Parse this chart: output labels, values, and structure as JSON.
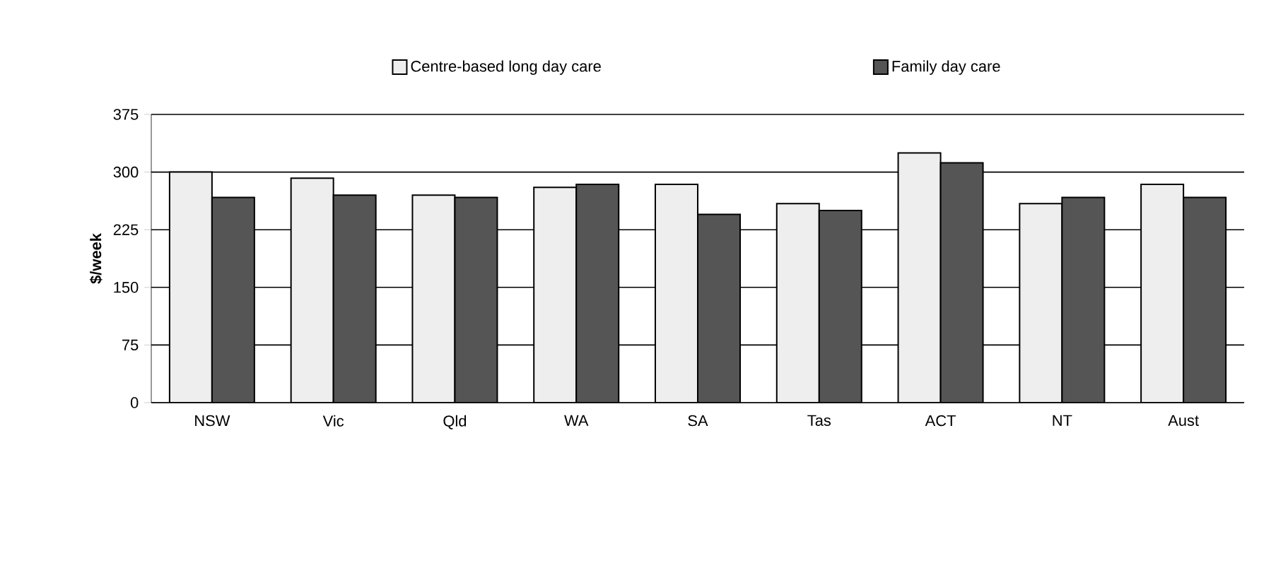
{
  "chart_data": {
    "type": "bar",
    "ylabel": "$/week",
    "categories": [
      "NSW",
      "Vic",
      "Qld",
      "WA",
      "SA",
      "Tas",
      "ACT",
      "NT",
      "Aust"
    ],
    "series": [
      {
        "name": "Centre-based long day care",
        "color": "#eeeeee",
        "values": [
          300,
          292,
          270,
          280,
          284,
          259,
          325,
          259,
          284
        ]
      },
      {
        "name": "Family day care",
        "color": "#555555",
        "values": [
          267,
          270,
          267,
          284,
          245,
          250,
          312,
          267,
          267
        ]
      }
    ],
    "ylim": [
      0,
      375
    ],
    "yticks": [
      0,
      75,
      150,
      225,
      300,
      375
    ],
    "grid": "y",
    "legend": "top"
  }
}
